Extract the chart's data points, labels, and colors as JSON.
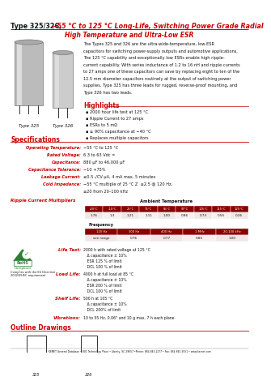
{
  "title_black": "Type 325/326,",
  "title_red": " −55 °C to 125 °C Long-Life, Switching Power Grade Radial",
  "subtitle_red": "High Temperature and Ultra-Low ESR",
  "desc_lines": [
    "The Types 325 and 326 are the ultra-wide-temperature, low-ESR",
    "capacitors for switching power-supply outputs and automotive applications.",
    "The 125 °C capability and exceptionally low ESRs enable high ripple-",
    "current capability. With series inductance of 1.2 to 16 nH and ripple currents",
    "to 27 amps one of these capacitors can save by replacing eight to ten of the",
    "12.5 mm diameter capacitors routinely at the output of switching power",
    "supplies. Type 325 has three leads for rugged, reverse-proof mounting, and",
    "Type 326 has two leads."
  ],
  "highlights_title": "Highlights",
  "highlights": [
    "2000 hour life test at 125 °C",
    "Ripple Current to 27 amps",
    "ESRs to 5 mΩ",
    "≥ 90% capacitance at −40 °C",
    "Replaces multiple capacitors"
  ],
  "specs_title": "Specifications",
  "specs": [
    [
      "Operating Temperature:",
      "−55 °C to 125 °C"
    ],
    [
      "Rated Voltage:",
      "6.3 to 63 Vdc ="
    ],
    [
      "Capacitance:",
      "880 μF to 46,000 μF"
    ],
    [
      "Capacitance Tolerance:",
      "−10 +75%"
    ],
    [
      "Leakage Current:",
      "≤0.5 √CV μA, 4 mA max, 5 minutes"
    ],
    [
      "Cold Impedance:",
      "−55 °C multiple of 25 °C Z  ≤2.5 @ 120 Hz,"
    ],
    [
      "",
      "≤20 from 20–100 kHz"
    ]
  ],
  "ripple_title": "Ripple Current Multipliers",
  "ambient_header": "Ambient Temperature",
  "ambient_temps": [
    "-40°C",
    "-10°C",
    "25°C",
    "75°C",
    "85°C",
    "97°C",
    "105°C",
    "115°C",
    "125°C"
  ],
  "ambient_vals": [
    "1.76",
    "1.3",
    "1.21",
    "1.11",
    "1.00",
    "0.86",
    "0.73",
    "0.55",
    "0.26"
  ],
  "freq_header": "Frequency",
  "freq_cols": [
    "120 Hz",
    "300 Hz",
    "400 Hz",
    "1 MHz",
    "20-100 kHz"
  ],
  "freq_vals": [
    "see range",
    "0.76",
    "0.77",
    "0.85",
    "1.00"
  ],
  "life_title": "Life Test:",
  "life_lines": [
    "2000 h with rated voltage at 125 °C",
    "   Δ capacitance ± 10%",
    "   ESR 125 % of limit",
    "   DCL 100 % of limit"
  ],
  "load_title": "Load Life:",
  "load_lines": [
    "4000 h at full load at 85 °C",
    "   Δ capacitance ± 10%",
    "   ESR 200 % of limit",
    "   DCL 100 % of limit"
  ],
  "shelf_title": "Shelf Life:",
  "shelf_lines": [
    "500 h at 105 °C",
    "   Δ capacitance ± 10%",
    "   DCL 200% of limit"
  ],
  "vib_title": "Vibrations:",
  "vib_text": "10 to 55 Hz, 0.06\" and 10 g max, 7 h each plane",
  "outline_title": "Outline Drawings",
  "rohs1": "Complies with the EU Directive",
  "rohs2": "2002/95/EC requirement",
  "footer": "KEMET General Database • 801 Technology Place • Liberty, SC 29657 •Phone: 864-843-2277 • Fax: 864-843-3551 • www.kemet.com",
  "red": "#CC0000",
  "dark_red": "#8B0000",
  "black": "#111111",
  "white": "#FFFFFF",
  "bg": "#FFFFFF",
  "table_hdr_bg": "#8B1A1A",
  "table_val_bg": "#F5EDED"
}
